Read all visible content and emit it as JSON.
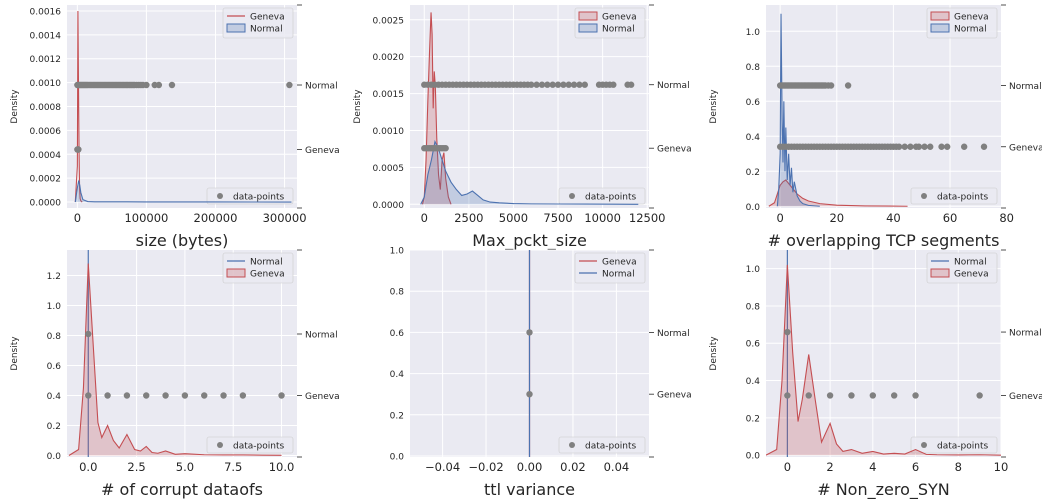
{
  "figure": {
    "background": "#ffffff",
    "axes_bg": "#eaeaf2",
    "grid_color": "#ffffff"
  },
  "colors": {
    "Geneva": "#c44e52",
    "Normal": "#4c72b0",
    "points": "#808080"
  },
  "chart_data": [
    {
      "type": "kde-density-with-points",
      "xlabel": "size (bytes)",
      "ylabel": "Density",
      "xlim": [
        -15000,
        318000
      ],
      "ylim": [
        -5e-05,
        0.00165
      ],
      "xticks": [
        "0",
        "100000",
        "200000",
        "300000"
      ],
      "yticks": [
        "0.0000",
        "0.0002",
        "0.0004",
        "0.0006",
        "0.0008",
        "0.0010",
        "0.0012",
        "0.0014",
        "0.0016"
      ],
      "legend": {
        "position": "top-right",
        "entries": [
          "Geneva",
          "Normal"
        ]
      },
      "points_legend": "data-points",
      "right_labels": [
        "Normal",
        "Geneva"
      ],
      "series": [
        {
          "name": "Geneva",
          "fill": false,
          "x": [
            -3000,
            0,
            800,
            1600,
            2400,
            3200,
            4000,
            5000,
            7000
          ],
          "y": [
            0,
            0.0003,
            0.0016,
            0.001,
            0.00045,
            0.00012,
            3e-05,
            1e-05,
            0
          ]
        },
        {
          "name": "Normal",
          "fill": true,
          "x": [
            -3000,
            0,
            2000,
            3500,
            5000,
            8000,
            15000,
            25000,
            50000,
            100000,
            200000,
            310000
          ],
          "y": [
            0,
            0.00012,
            0.00018,
            0.00014,
            8e-05,
            2e-05,
            4e-06,
            2e-06,
            2e-06,
            1e-06,
            5e-07,
            0
          ]
        }
      ],
      "points": [
        {
          "row": "Normal",
          "y": 0.00098,
          "x": [
            0,
            1500,
            3000,
            4500,
            6000,
            7500,
            9000,
            10500,
            12000,
            13500,
            15000,
            17000,
            19000,
            21000,
            23000,
            25000,
            27000,
            29000,
            31000,
            33000,
            35000,
            37000,
            39000,
            41000,
            43000,
            45000,
            47000,
            49000,
            51000,
            53000,
            55000,
            57000,
            59000,
            61000,
            63000,
            65000,
            67000,
            69000,
            71000,
            73000,
            75000,
            77000,
            79000,
            81000,
            83000,
            86000,
            89000,
            92000,
            95000,
            100000,
            112000,
            118000,
            137000,
            307000
          ]
        },
        {
          "row": "Geneva",
          "y": 0.00044,
          "x": [
            0,
            500,
            1000,
            1500
          ]
        }
      ]
    },
    {
      "type": "kde-density-with-points",
      "xlabel": "Max_pckt_size",
      "ylabel": "Density",
      "xlim": [
        -800,
        12600
      ],
      "ylim": [
        -5e-05,
        0.0027
      ],
      "xticks": [
        "0",
        "2500",
        "5000",
        "7500",
        "10000",
        "12500"
      ],
      "yticks": [
        "0.0000",
        "0.0005",
        "0.0010",
        "0.0015",
        "0.0020",
        "0.0025"
      ],
      "legend": {
        "position": "top-right",
        "entries": [
          "Geneva",
          "Normal"
        ]
      },
      "points_legend": "data-points",
      "right_labels": [
        "Normal",
        "Geneva"
      ],
      "series": [
        {
          "name": "Geneva",
          "fill": true,
          "x": [
            -100,
            0,
            100,
            200,
            300,
            380,
            440,
            500,
            560,
            620,
            700,
            800,
            900,
            1000,
            1100,
            1200,
            1350,
            1500
          ],
          "y": [
            0,
            0.0001,
            0.0006,
            0.0014,
            0.0021,
            0.0026,
            0.0023,
            0.0013,
            0.0018,
            0.0016,
            0.0009,
            0.0004,
            0.0002,
            0.0006,
            0.0007,
            0.00035,
            0.0001,
            0
          ]
        },
        {
          "name": "Normal",
          "fill": true,
          "x": [
            -200,
            0,
            200,
            400,
            600,
            800,
            1000,
            1200,
            1500,
            1800,
            2100,
            2400,
            2700,
            3000,
            3300,
            3700,
            4200,
            5000,
            6000,
            7500,
            9000,
            10500,
            12000
          ],
          "y": [
            0,
            0.0001,
            0.0004,
            0.0006,
            0.00085,
            0.00075,
            0.0006,
            0.00045,
            0.0003,
            0.0002,
            0.00012,
            0.00014,
            0.00018,
            0.00012,
            6e-05,
            3e-05,
            2e-05,
            1e-05,
            6e-06,
            4e-06,
            3e-06,
            2e-06,
            0
          ]
        }
      ],
      "points": [
        {
          "row": "Normal",
          "y": 0.00162,
          "x": [
            0,
            200,
            400,
            600,
            800,
            1000,
            1200,
            1400,
            1600,
            1800,
            2000,
            2200,
            2400,
            2600,
            2800,
            3000,
            3200,
            3400,
            3600,
            3800,
            4000,
            4200,
            4400,
            4600,
            4800,
            5000,
            5200,
            5400,
            5600,
            5800,
            6000,
            6300,
            6600,
            6900,
            7200,
            7500,
            7800,
            8100,
            8400,
            8700,
            9000,
            9800,
            10000,
            10200,
            10400,
            10600,
            11400,
            11600
          ]
        },
        {
          "row": "Geneva",
          "y": 0.00076,
          "x": [
            0,
            100,
            200,
            300,
            400,
            500,
            600,
            700,
            800,
            900,
            1000,
            1100,
            1200
          ]
        }
      ]
    },
    {
      "type": "kde-density-with-points",
      "xlabel": "# overlapping TCP segments",
      "ylabel": "Density",
      "xlim": [
        -5,
        78
      ],
      "ylim": [
        -0.01,
        1.15
      ],
      "xticks": [
        "0",
        "20",
        "40",
        "60",
        "80"
      ],
      "yticks": [
        "0.0",
        "0.2",
        "0.4",
        "0.6",
        "0.8",
        "1.0"
      ],
      "legend": {
        "position": "top-right",
        "entries": [
          "Geneva",
          "Normal"
        ]
      },
      "points_legend": "data-points",
      "right_labels": [
        "Normal",
        "Geneva"
      ],
      "series": [
        {
          "name": "Geneva",
          "fill": true,
          "x": [
            -4,
            -2,
            0,
            1,
            2,
            3,
            4,
            5,
            6,
            8,
            10,
            14,
            20,
            30,
            45
          ],
          "y": [
            0,
            0.02,
            0.12,
            0.14,
            0.15,
            0.13,
            0.11,
            0.09,
            0.07,
            0.045,
            0.03,
            0.015,
            0.006,
            0.002,
            0
          ]
        },
        {
          "name": "Normal",
          "fill": true,
          "x": [
            -1,
            -0.5,
            0,
            0.3,
            0.7,
            1,
            1.3,
            1.7,
            2,
            2.5,
            3,
            3.5,
            4,
            4.5,
            5,
            6,
            7,
            8,
            10,
            14
          ],
          "y": [
            0,
            0.1,
            0.3,
            1.1,
            0.5,
            0.25,
            0.6,
            0.2,
            0.45,
            0.15,
            0.3,
            0.12,
            0.22,
            0.08,
            0.14,
            0.06,
            0.03,
            0.015,
            0.005,
            0
          ]
        }
      ],
      "points": [
        {
          "row": "Normal",
          "y": 0.69,
          "x": [
            0,
            0.5,
            1,
            1.5,
            2,
            2.5,
            3,
            3.5,
            4,
            4.5,
            5,
            5.5,
            6,
            6.5,
            7,
            7.5,
            8,
            8.5,
            9,
            9.5,
            10,
            10.5,
            11,
            11.5,
            12,
            12.5,
            13,
            13.5,
            14,
            14.5,
            15,
            15.5,
            16,
            17,
            18,
            24
          ]
        },
        {
          "row": "Geneva",
          "y": 0.34,
          "x": [
            0,
            1,
            2,
            3,
            4,
            5,
            6,
            7,
            8,
            9,
            10,
            11,
            12,
            13,
            14,
            15,
            16,
            17,
            18,
            19,
            20,
            21,
            22,
            23,
            24,
            25,
            26,
            27,
            28,
            29,
            30,
            31,
            32,
            33,
            34,
            35,
            36,
            37,
            38,
            39,
            40,
            41,
            42,
            44,
            46,
            48,
            49,
            51,
            53,
            57,
            59,
            65,
            72
          ]
        }
      ]
    },
    {
      "type": "kde-density-with-points",
      "xlabel": "# of corrupt dataofs",
      "ylabel": "Density",
      "xlim": [
        -1.1,
        10.8
      ],
      "ylim": [
        -0.01,
        1.37
      ],
      "xticks": [
        "0.0",
        "2.5",
        "5.0",
        "7.5",
        "10.0"
      ],
      "yticks": [
        "0.0",
        "0.2",
        "0.4",
        "0.6",
        "0.8",
        "1.0",
        "1.2"
      ],
      "legend": {
        "position": "top-right",
        "entries": [
          "Normal",
          "Geneva"
        ]
      },
      "points_legend": "data-points",
      "right_labels": [
        "Normal",
        "Geneva"
      ],
      "series": [
        {
          "name": "Normal",
          "fill": false,
          "vertical_at": 0
        },
        {
          "name": "Geneva",
          "fill": true,
          "x": [
            -1,
            -0.5,
            -0.25,
            0,
            0.25,
            0.5,
            0.7,
            1,
            1.3,
            1.6,
            2,
            2.4,
            2.7,
            3,
            3.3,
            3.6,
            4,
            4.5,
            5,
            6,
            7,
            8,
            9,
            10
          ],
          "y": [
            0,
            0.04,
            0.45,
            1.28,
            0.75,
            0.22,
            0.12,
            0.2,
            0.1,
            0.05,
            0.14,
            0.04,
            0.03,
            0.06,
            0.02,
            0.015,
            0.03,
            0.008,
            0.012,
            0.005,
            0.004,
            0.004,
            0.002,
            0.001
          ]
        }
      ],
      "points": [
        {
          "row": "Normal",
          "y": 0.81,
          "x": [
            0
          ]
        },
        {
          "row": "Geneva",
          "y": 0.4,
          "x": [
            0,
            1,
            2,
            3,
            4,
            5,
            6,
            7,
            8,
            10
          ]
        }
      ]
    },
    {
      "type": "kde-density-with-points",
      "xlabel": "ttl variance",
      "ylabel": "",
      "xlim": [
        -0.055,
        0.055
      ],
      "ylim": [
        -0.005,
        1.0
      ],
      "xticks": [
        "−0.04",
        "−0.02",
        "0.00",
        "0.02",
        "0.04"
      ],
      "yticks": [
        "0.0",
        "0.2",
        "0.4",
        "0.6",
        "0.8",
        "1.0"
      ],
      "legend": {
        "position": "top-right",
        "entries": [
          "Geneva",
          "Normal"
        ]
      },
      "points_legend": "data-points",
      "right_labels": [
        "Normal",
        "Geneva"
      ],
      "series": [
        {
          "name": "Geneva",
          "fill": false,
          "vertical_at": 0
        },
        {
          "name": "Normal",
          "fill": false,
          "vertical_at": 0
        }
      ],
      "points": [
        {
          "row": "Normal",
          "y": 0.6,
          "x": [
            0
          ]
        },
        {
          "row": "Geneva",
          "y": 0.3,
          "x": [
            0
          ]
        }
      ]
    },
    {
      "type": "kde-density-with-points",
      "xlabel": "# Non_zero_SYN",
      "ylabel": "Density",
      "xlim": [
        -1,
        10
      ],
      "ylim": [
        -0.01,
        1.1
      ],
      "xticks": [
        "0",
        "2",
        "4",
        "6",
        "8",
        "10"
      ],
      "yticks": [
        "0.0",
        "0.2",
        "0.4",
        "0.6",
        "0.8",
        "1.0"
      ],
      "legend": {
        "position": "top-right",
        "entries": [
          "Normal",
          "Geneva"
        ]
      },
      "points_legend": "data-points",
      "right_labels": [
        "Normal",
        "Geneva"
      ],
      "series": [
        {
          "name": "Normal",
          "fill": false,
          "vertical_at": 0
        },
        {
          "name": "Geneva",
          "fill": true,
          "x": [
            -1,
            -0.5,
            -0.25,
            0,
            0.25,
            0.5,
            0.7,
            1,
            1.3,
            1.6,
            2,
            2.3,
            2.6,
            3,
            3.5,
            4,
            4.5,
            5,
            5.5,
            6,
            6.5,
            7,
            8,
            9,
            10
          ],
          "y": [
            0,
            0.03,
            0.4,
            1.02,
            0.55,
            0.18,
            0.3,
            0.54,
            0.3,
            0.07,
            0.17,
            0.06,
            0.02,
            0.03,
            0.01,
            0.02,
            0.006,
            0.01,
            0.006,
            0.03,
            0.004,
            0.002,
            0.001,
            0.002,
            0
          ]
        }
      ],
      "points": [
        {
          "row": "Normal",
          "y": 0.66,
          "x": [
            0
          ]
        },
        {
          "row": "Geneva",
          "y": 0.32,
          "x": [
            0,
            1,
            2,
            3,
            4,
            5,
            6,
            9
          ]
        }
      ]
    }
  ]
}
